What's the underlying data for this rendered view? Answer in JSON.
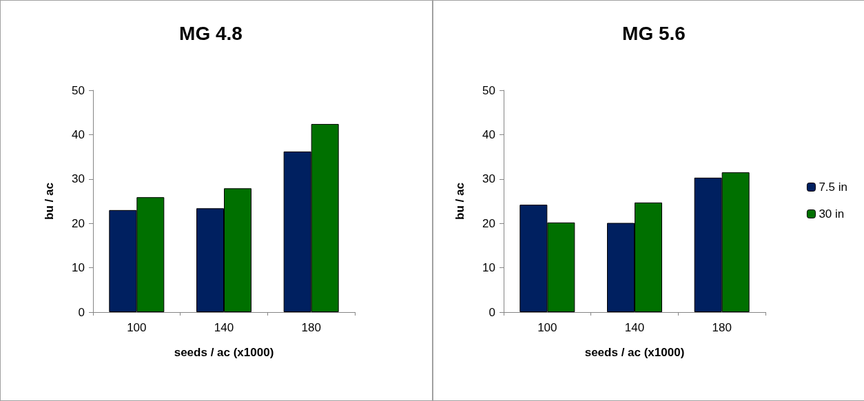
{
  "chart_data": [
    {
      "type": "bar",
      "title": "MG 4.8",
      "xlabel": "seeds / ac (x1000)",
      "ylabel": "bu / ac",
      "categories": [
        "100",
        "140",
        "180"
      ],
      "series": [
        {
          "color": "#002060",
          "values": [
            23.0,
            23.4,
            36.2
          ]
        },
        {
          "color": "#007000",
          "values": [
            25.9,
            27.9,
            42.4
          ]
        }
      ],
      "ylim": [
        0,
        50
      ],
      "yticks": [
        0,
        10,
        20,
        30,
        40,
        50
      ],
      "grid": false,
      "legend": false
    },
    {
      "type": "bar",
      "title": "MG 5.6",
      "xlabel": "seeds / ac (x1000)",
      "ylabel": "bu / ac",
      "categories": [
        "100",
        "140",
        "180"
      ],
      "series": [
        {
          "name": "7.5 in",
          "color": "#002060",
          "values": [
            24.2,
            20.1,
            30.3
          ]
        },
        {
          "name": "30 in",
          "color": "#007000",
          "values": [
            20.2,
            24.7,
            31.5
          ]
        }
      ],
      "ylim": [
        0,
        50
      ],
      "yticks": [
        0,
        10,
        20,
        30,
        40,
        50
      ],
      "grid": false,
      "legend": "right"
    }
  ]
}
